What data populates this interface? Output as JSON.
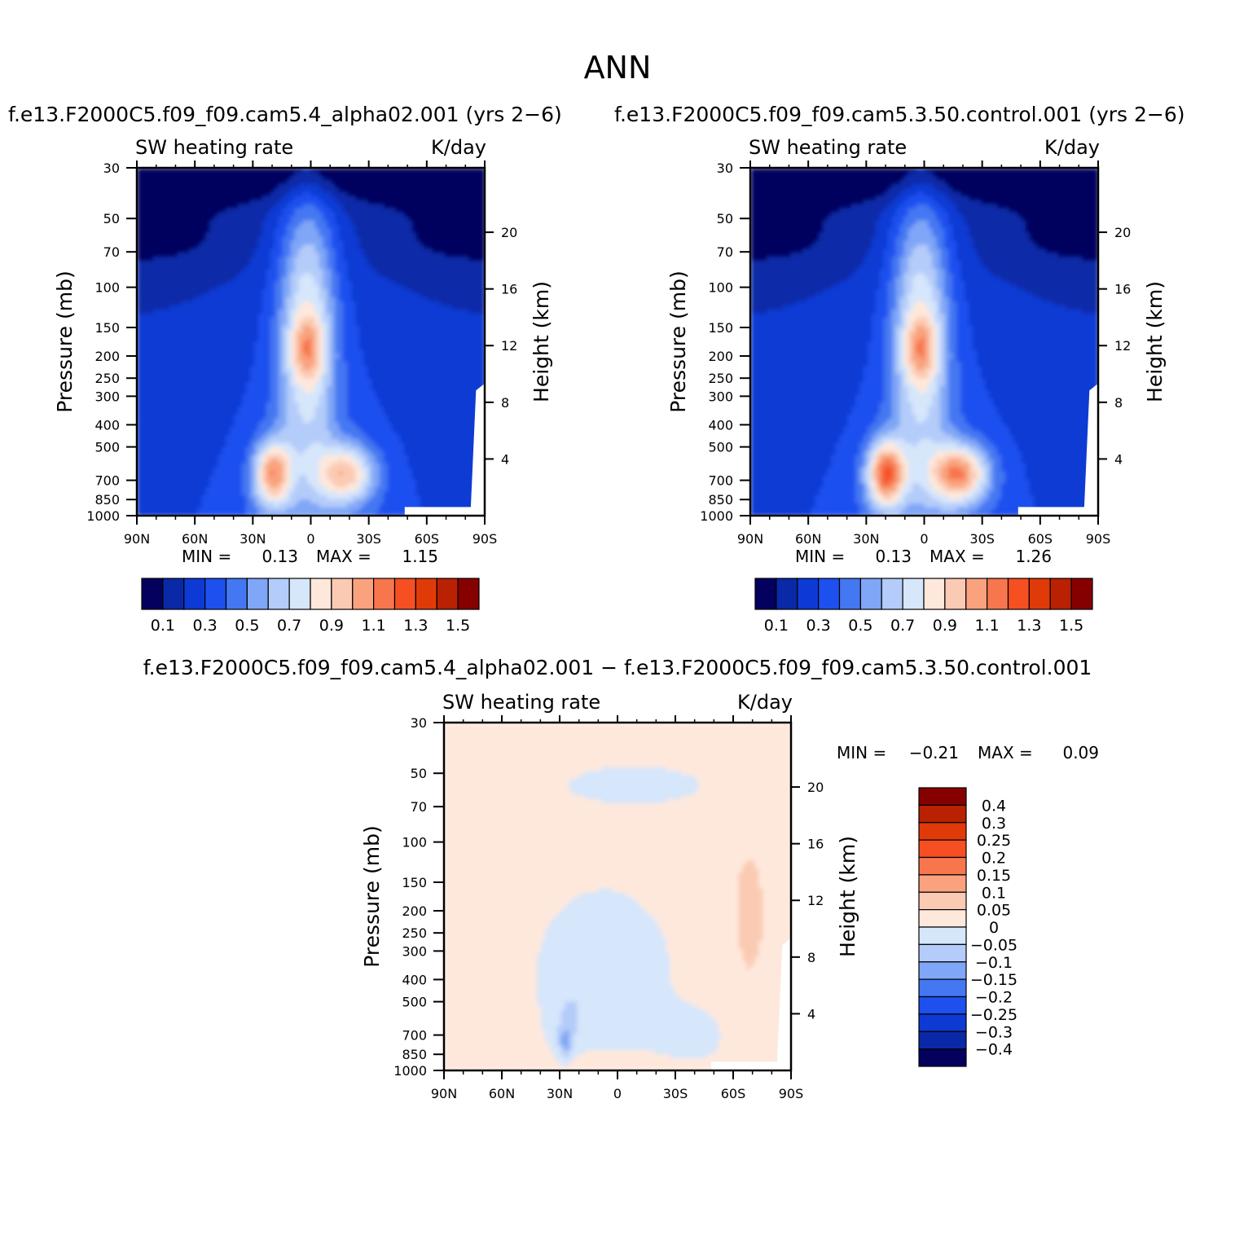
{
  "title": "ANN",
  "colors": {
    "scale": [
      "#04005e",
      "#0a29a8",
      "#0d3ad4",
      "#1d50ef",
      "#4477f2",
      "#7fa6f7",
      "#b4ccf9",
      "#d6e6fb",
      "#fee8dc",
      "#fbcab3",
      "#f9a27d",
      "#f7764e",
      "#f54f22",
      "#e13a09",
      "#b92102",
      "#870000"
    ],
    "diff_scale": [
      "#04005e",
      "#0a29a8",
      "#0d3ad4",
      "#1d50ef",
      "#4477f2",
      "#7fa6f7",
      "#b4ccf9",
      "#d6e6fb",
      "#fee8dc",
      "#fbcab3",
      "#f9a27d",
      "#f7764e",
      "#f54f22",
      "#e13a09",
      "#b92102",
      "#870000"
    ],
    "missing": "#ffffff"
  },
  "panels": [
    {
      "run_title": "f.e13.F2000C5.f09_f09.cam5.4_alpha02.001 (yrs 2−6)",
      "left_string": "SW heating rate",
      "right_string": "K/day",
      "ylabel": "Pressure (mb)",
      "ylabel_right": "Height (km)",
      "min_label": "MIN =",
      "min_value": "0.13",
      "max_label": "MAX =",
      "max_value": "1.15"
    },
    {
      "run_title": "f.e13.F2000C5.f09_f09.cam5.3.50.control.001 (yrs 2−6)",
      "left_string": "SW heating rate",
      "right_string": "K/day",
      "ylabel": "Pressure (mb)",
      "ylabel_right": "Height (km)",
      "min_label": "MIN =",
      "min_value": "0.13",
      "max_label": "MAX =",
      "max_value": "1.26"
    },
    {
      "run_title": "f.e13.F2000C5.f09_f09.cam5.4_alpha02.001 − f.e13.F2000C5.f09_f09.cam5.3.50.control.001",
      "left_string": "SW heating rate",
      "right_string": "K/day",
      "ylabel": "Pressure (mb)",
      "ylabel_right": "Height (km)",
      "min_label": "MIN =",
      "min_value": "−0.21",
      "max_label": "MAX =",
      "max_value": "0.09"
    }
  ],
  "axes": {
    "x_ticks": [
      "90N",
      "60N",
      "30N",
      "0",
      "30S",
      "60S",
      "90S"
    ],
    "x_values": [
      90,
      60,
      30,
      0,
      -30,
      -60,
      -90
    ],
    "p_ticks": [
      30,
      50,
      70,
      100,
      150,
      200,
      250,
      300,
      400,
      500,
      700,
      850,
      1000
    ],
    "p_tick_labels": [
      "30",
      "50",
      "70",
      "100",
      "150",
      "200",
      "250",
      "300",
      "400",
      "500",
      "700",
      "850",
      "1000"
    ],
    "p_range": [
      30,
      1000
    ],
    "height_ticks": [
      20,
      16,
      12,
      8,
      4
    ],
    "height_tick_labels": [
      "20",
      "16",
      "12",
      "8",
      "4"
    ],
    "log_pressure": true
  },
  "colorbars": {
    "main_labels": [
      "0.1",
      "0.3",
      "0.5",
      "0.7",
      "0.9",
      "1.1",
      "1.3",
      "1.5"
    ],
    "diff_labels": [
      "0.4",
      "0.3",
      "0.25",
      "0.2",
      "0.15",
      "0.1",
      "0.05",
      "0",
      "−0.05",
      "−0.1",
      "−0.15",
      "−0.2",
      "−0.25",
      "−0.3",
      "−0.4"
    ]
  },
  "chart_data": [
    {
      "type": "heatmap",
      "panel": "alpha02",
      "x": [
        90,
        60,
        30,
        0,
        -30,
        -60,
        -90
      ],
      "pressure_levels": [
        30,
        50,
        70,
        100,
        150,
        200,
        250,
        300,
        400,
        500,
        700,
        850,
        1000
      ],
      "levels": [
        0.1,
        0.2,
        0.3,
        0.4,
        0.5,
        0.6,
        0.7,
        0.8,
        0.9,
        1.0,
        1.1,
        1.2,
        1.3,
        1.4,
        1.5
      ],
      "min": 0.13,
      "max": 1.15,
      "units": "K/day"
    },
    {
      "type": "heatmap",
      "panel": "control",
      "x": [
        90,
        60,
        30,
        0,
        -30,
        -60,
        -90
      ],
      "pressure_levels": [
        30,
        50,
        70,
        100,
        150,
        200,
        250,
        300,
        400,
        500,
        700,
        850,
        1000
      ],
      "levels": [
        0.1,
        0.2,
        0.3,
        0.4,
        0.5,
        0.6,
        0.7,
        0.8,
        0.9,
        1.0,
        1.1,
        1.2,
        1.3,
        1.4,
        1.5
      ],
      "min": 0.13,
      "max": 1.26,
      "units": "K/day"
    },
    {
      "type": "heatmap",
      "panel": "difference",
      "x": [
        90,
        60,
        30,
        0,
        -30,
        -60,
        -90
      ],
      "pressure_levels": [
        30,
        50,
        70,
        100,
        150,
        200,
        250,
        300,
        400,
        500,
        700,
        850,
        1000
      ],
      "levels": [
        -0.4,
        -0.3,
        -0.25,
        -0.2,
        -0.15,
        -0.1,
        -0.05,
        0,
        0.05,
        0.1,
        0.15,
        0.2,
        0.25,
        0.3,
        0.4
      ],
      "min": -0.21,
      "max": 0.09,
      "units": "K/day"
    }
  ]
}
